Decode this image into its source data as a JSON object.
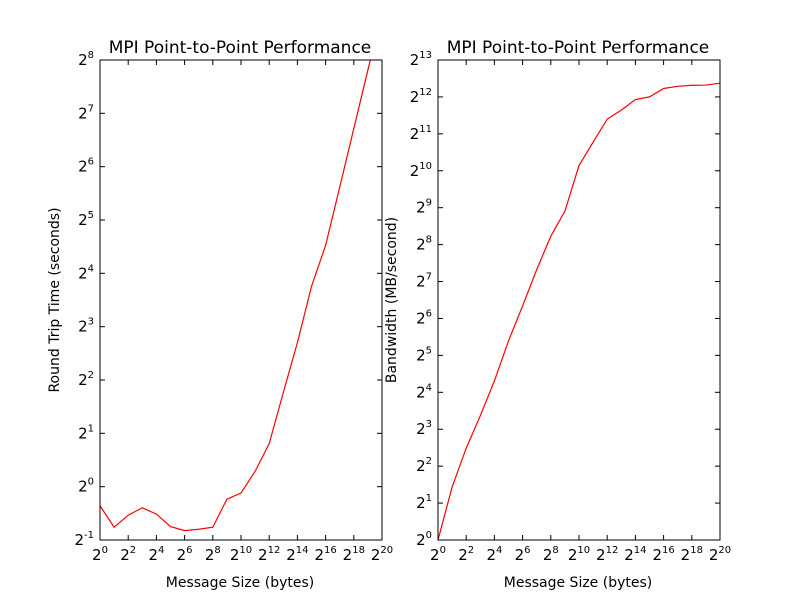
{
  "chart_data": [
    {
      "type": "line",
      "title": "MPI Point-to-Point Performance",
      "xlabel": "Message Size (bytes)",
      "ylabel": "Round Trip Time (seconds)",
      "xscale": "log2",
      "yscale": "log2",
      "xlim": [
        1,
        1048576
      ],
      "ylim": [
        0.5,
        256
      ],
      "xticks": [
        {
          "base": "2",
          "exp": "0",
          "v": 1
        },
        {
          "base": "2",
          "exp": "2",
          "v": 4
        },
        {
          "base": "2",
          "exp": "4",
          "v": 16
        },
        {
          "base": "2",
          "exp": "6",
          "v": 64
        },
        {
          "base": "2",
          "exp": "8",
          "v": 256
        },
        {
          "base": "2",
          "exp": "10",
          "v": 1024
        },
        {
          "base": "2",
          "exp": "12",
          "v": 4096
        },
        {
          "base": "2",
          "exp": "14",
          "v": 16384
        },
        {
          "base": "2",
          "exp": "16",
          "v": 65536
        },
        {
          "base": "2",
          "exp": "18",
          "v": 262144
        },
        {
          "base": "2",
          "exp": "20",
          "v": 1048576
        }
      ],
      "yticks": [
        {
          "base": "2",
          "exp": "-1",
          "v": 0.5
        },
        {
          "base": "2",
          "exp": "0",
          "v": 1
        },
        {
          "base": "2",
          "exp": "1",
          "v": 2
        },
        {
          "base": "2",
          "exp": "2",
          "v": 4
        },
        {
          "base": "2",
          "exp": "3",
          "v": 8
        },
        {
          "base": "2",
          "exp": "4",
          "v": 16
        },
        {
          "base": "2",
          "exp": "5",
          "v": 32
        },
        {
          "base": "2",
          "exp": "6",
          "v": 64
        },
        {
          "base": "2",
          "exp": "7",
          "v": 128
        },
        {
          "base": "2",
          "exp": "8",
          "v": 256
        }
      ],
      "color": "#ff0000",
      "series": [
        {
          "x": [
            1,
            2,
            4,
            8,
            16,
            32,
            64,
            128,
            256,
            512,
            1024,
            2048,
            4096,
            8192,
            16384,
            32768,
            65536,
            131072,
            262144,
            524288,
            1048576
          ],
          "y": [
            0.78,
            0.59,
            0.69,
            0.76,
            0.7,
            0.595,
            0.565,
            0.575,
            0.59,
            0.85,
            0.92,
            1.22,
            1.75,
            3.4,
            6.5,
            13.5,
            23,
            49,
            105,
            225,
            470
          ]
        }
      ]
    },
    {
      "type": "line",
      "title": "MPI Point-to-Point Performance",
      "xlabel": "Message Size (bytes)",
      "ylabel": "Bandwidth (MB/second)",
      "xscale": "log2",
      "yscale": "log2",
      "xlim": [
        1,
        1048576
      ],
      "ylim": [
        1,
        8192
      ],
      "xticks": [
        {
          "base": "2",
          "exp": "0",
          "v": 1
        },
        {
          "base": "2",
          "exp": "2",
          "v": 4
        },
        {
          "base": "2",
          "exp": "4",
          "v": 16
        },
        {
          "base": "2",
          "exp": "6",
          "v": 64
        },
        {
          "base": "2",
          "exp": "8",
          "v": 256
        },
        {
          "base": "2",
          "exp": "10",
          "v": 1024
        },
        {
          "base": "2",
          "exp": "12",
          "v": 4096
        },
        {
          "base": "2",
          "exp": "14",
          "v": 16384
        },
        {
          "base": "2",
          "exp": "16",
          "v": 65536
        },
        {
          "base": "2",
          "exp": "18",
          "v": 262144
        },
        {
          "base": "2",
          "exp": "20",
          "v": 1048576
        }
      ],
      "yticks": [
        {
          "base": "2",
          "exp": "0",
          "v": 1
        },
        {
          "base": "2",
          "exp": "1",
          "v": 2
        },
        {
          "base": "2",
          "exp": "2",
          "v": 4
        },
        {
          "base": "2",
          "exp": "3",
          "v": 8
        },
        {
          "base": "2",
          "exp": "4",
          "v": 16
        },
        {
          "base": "2",
          "exp": "5",
          "v": 32
        },
        {
          "base": "2",
          "exp": "6",
          "v": 64
        },
        {
          "base": "2",
          "exp": "7",
          "v": 128
        },
        {
          "base": "2",
          "exp": "8",
          "v": 256
        },
        {
          "base": "2",
          "exp": "9",
          "v": 512
        },
        {
          "base": "2",
          "exp": "10",
          "v": 1024
        },
        {
          "base": "2",
          "exp": "11",
          "v": 2048
        },
        {
          "base": "2",
          "exp": "12",
          "v": 4096
        },
        {
          "base": "2",
          "exp": "13",
          "v": 8192
        }
      ],
      "color": "#ff0000",
      "series": [
        {
          "x": [
            1,
            2,
            4,
            8,
            16,
            32,
            64,
            128,
            256,
            512,
            1024,
            2048,
            4096,
            8192,
            16384,
            32768,
            65536,
            131072,
            262144,
            524288,
            1048576
          ],
          "y": [
            1,
            2.7,
            5.6,
            10.3,
            19.8,
            42,
            81,
            160,
            300,
            480,
            1130,
            1750,
            2700,
            3200,
            3900,
            4100,
            4800,
            5000,
            5100,
            5120,
            5300
          ]
        }
      ]
    }
  ]
}
